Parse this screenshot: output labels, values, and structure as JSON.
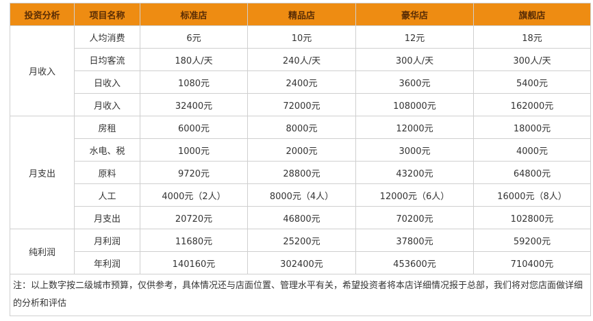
{
  "accent_color": "#ee8c12",
  "headers": [
    "投资分析",
    "项目名称",
    "标准店",
    "精品店",
    "豪华店",
    "旗舰店"
  ],
  "groups": [
    {
      "label": "月收入",
      "rows": [
        {
          "item": "人均消费",
          "values": [
            "6元",
            "10元",
            "12元",
            "18元"
          ]
        },
        {
          "item": "日均客流",
          "values": [
            "180人/天",
            "240人/天",
            "300人/天",
            "300人/天"
          ]
        },
        {
          "item": "日收入",
          "values": [
            "1080元",
            "2400元",
            "3600元",
            "5400元"
          ]
        },
        {
          "item": "月收入",
          "values": [
            "32400元",
            "72000元",
            "108000元",
            "162000元"
          ]
        }
      ]
    },
    {
      "label": "月支出",
      "rows": [
        {
          "item": "房租",
          "values": [
            "6000元",
            "8000元",
            "12000元",
            "18000元"
          ]
        },
        {
          "item": "水电、税",
          "values": [
            "1000元",
            "2000元",
            "3000元",
            "4000元"
          ]
        },
        {
          "item": "原料",
          "values": [
            "9720元",
            "28800元",
            "43200元",
            "64800元"
          ]
        },
        {
          "item": "人工",
          "values": [
            "4000元（2人）",
            "8000元（4人）",
            "12000元（6人）",
            "16000元（8人）"
          ]
        },
        {
          "item": "月支出",
          "values": [
            "20720元",
            "46800元",
            "70200元",
            "102800元"
          ]
        }
      ]
    },
    {
      "label": "纯利润",
      "rows": [
        {
          "item": "月利润",
          "values": [
            "11680元",
            "25200元",
            "37800元",
            "59200元"
          ]
        },
        {
          "item": "年利润",
          "values": [
            "140160元",
            "302400元",
            "453600元",
            "710400元"
          ]
        }
      ]
    }
  ],
  "note": "注：以上数字按二级城市预算，仅供参考，具体情况还与店面位置、管理水平有关，希望投资者将本店详细情况报于总部，我们将对您店面做详细的分析和评估"
}
